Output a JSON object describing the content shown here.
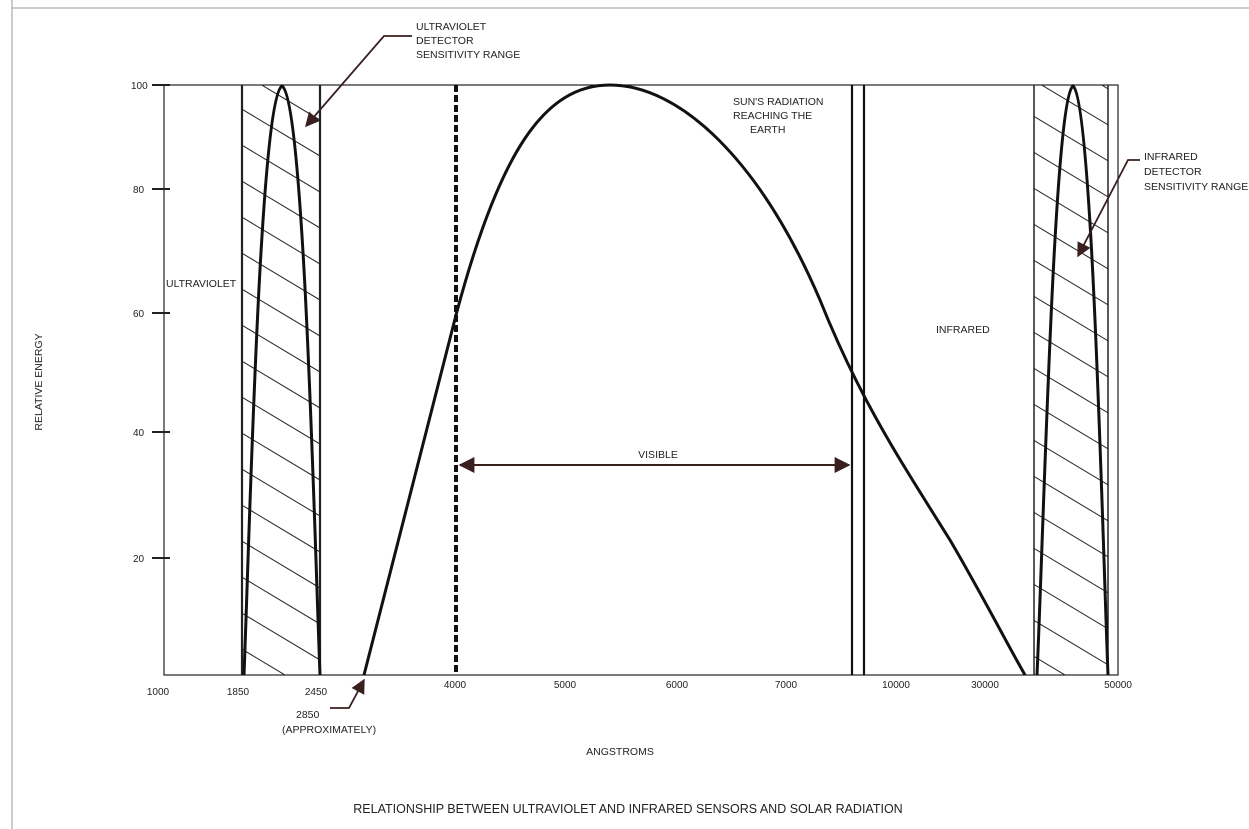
{
  "figure": {
    "title": "RELATIONSHIP BETWEEN ULTRAVIOLET AND INFRARED SENSORS AND SOLAR RADIATION",
    "ylabel": "RELATIVE ENERGY",
    "xlabel": "ANGSTROMS",
    "y_ticks": [
      "20",
      "40",
      "60",
      "80",
      "100"
    ],
    "x_ticks": [
      "1000",
      "1850",
      "2450",
      "4000",
      "5000",
      "6000",
      "7000",
      "10000",
      "30000",
      "50000"
    ],
    "annotations": {
      "uv_sensitivity": [
        "ULTRAVIOLET",
        "DETECTOR",
        "SENSITIVITY RANGE"
      ],
      "sun_radiation": [
        "SUN'S RADIATION",
        "REACHING THE",
        "EARTH"
      ],
      "ir_sensitivity": [
        "INFRARED",
        "DETECTOR",
        "SENSITIVITY RANGE"
      ],
      "ultraviolet": "ULTRAVIOLET",
      "infrared": "INFRARED",
      "visible": "VISIBLE",
      "cutoff": [
        "2850",
        "(APPROXIMATELY)"
      ]
    },
    "colors": {
      "ink": "#222222",
      "arrow": "#3a1f1f",
      "border": "#999999"
    }
  }
}
